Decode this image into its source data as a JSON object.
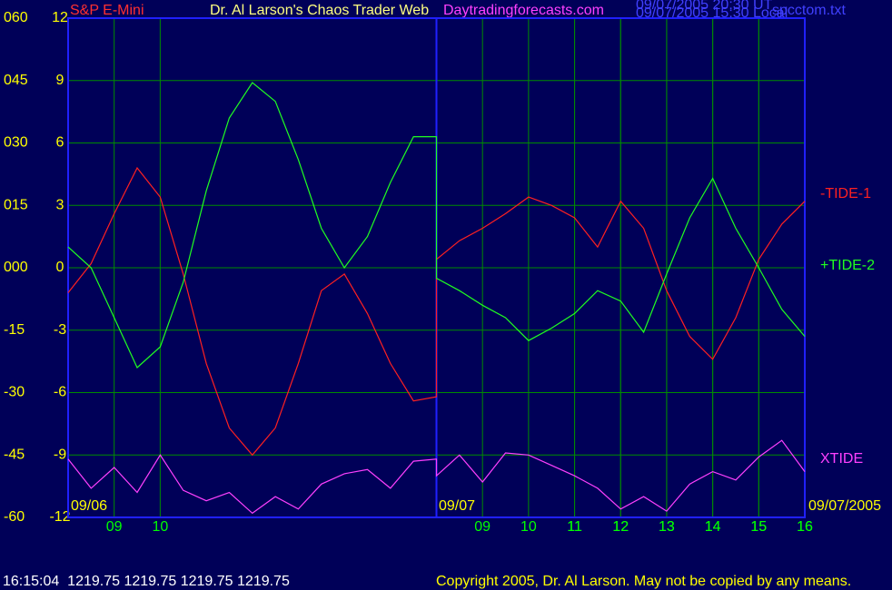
{
  "chart_data": {
    "type": "line",
    "title": "Dr. Al Larson's Chaos Trader Web",
    "subtitle": "S&P E-Mini",
    "website": "Daytradingforecasts.com",
    "timestamps": [
      "09/07/2005 20:30 UT",
      "09/07/2005 15:30 Local"
    ],
    "file": "spcctom.txt",
    "date_labels": [
      "09/06",
      "09/07",
      "09/07/2005"
    ],
    "status_line": "16:15:04  1219.75 1219.75 1219.75 1219.75",
    "copyright": "Copyright 2005, Dr. Al Larson. May not be copied by any means.",
    "x": [
      0,
      0.5,
      1,
      1.5,
      2,
      2.5,
      3,
      3.5,
      4,
      4.5,
      5,
      5.5,
      6,
      6.5,
      7,
      7.5,
      8,
      8,
      8.5,
      9,
      9.5,
      10,
      10.5,
      11,
      11.5,
      12,
      12.5,
      13,
      13.5,
      14,
      14.5,
      15,
      15.5,
      16
    ],
    "xlim": [
      0,
      16
    ],
    "xticks": [
      {
        "value": 1,
        "label": "09"
      },
      {
        "value": 2,
        "label": "10"
      },
      11,
      12,
      13,
      14,
      15,
      16,
      {
        "value": 9,
        "label": "09"
      },
      {
        "value": 10,
        "label": "10"
      },
      {
        "value": 11,
        "label": "11"
      },
      {
        "value": 12,
        "label": "12"
      },
      {
        "value": 13,
        "label": "13"
      },
      {
        "value": 14,
        "label": "14"
      },
      {
        "value": 15,
        "label": "15"
      },
      {
        "value": 16,
        "label": "16"
      }
    ],
    "ylim": [
      -12,
      12
    ],
    "yticks": [
      12,
      9,
      6,
      3,
      0,
      -3,
      -6,
      -9,
      -12
    ],
    "y2lim": [
      -60,
      60
    ],
    "y2ticks": [
      {
        "value": 60,
        "label": "060"
      },
      {
        "value": 45,
        "label": "045"
      },
      {
        "value": 30,
        "label": "030"
      },
      {
        "value": 15,
        "label": "015"
      },
      {
        "value": 0,
        "label": "000"
      },
      -15,
      -30,
      -45,
      -60
    ],
    "grid": true,
    "series": [
      {
        "name": "-TIDE-1",
        "color": "#ff2020",
        "values": [
          -1.2,
          0.2,
          2.6,
          4.8,
          3.4,
          -0.3,
          -4.6,
          -7.7,
          -9.0,
          -7.7,
          -4.6,
          -1.1,
          -0.3,
          -2.2,
          -4.6,
          -6.4,
          -6.2,
          0.4,
          1.3,
          1.9,
          2.6,
          3.4,
          3.0,
          2.4,
          1.0,
          3.2,
          1.9,
          -1.1,
          -3.3,
          -4.4,
          -2.4,
          0.4,
          2.1,
          3.2
        ]
      },
      {
        "name": "+TIDE-2",
        "color": "#20ff20",
        "values": [
          1.0,
          0,
          -2.4,
          -4.8,
          -3.8,
          -0.7,
          3.7,
          7.2,
          8.9,
          8.0,
          5.2,
          1.9,
          0,
          1.5,
          4.1,
          6.3,
          6.3,
          -0.5,
          -1.1,
          -1.8,
          -2.4,
          -3.5,
          -2.9,
          -2.2,
          -1.1,
          -1.6,
          -3.1,
          -0.3,
          2.4,
          4.3,
          1.9,
          0,
          -2.0,
          -3.3
        ]
      },
      {
        "name": "XTIDE",
        "color": "#ff40ff",
        "values": [
          -9.2,
          -10.6,
          -9.6,
          -10.8,
          -9.0,
          -10.7,
          -11.2,
          -10.8,
          -11.8,
          -11.0,
          -11.6,
          -10.4,
          -9.9,
          -9.7,
          -10.6,
          -9.3,
          -9.2,
          -10.0,
          -9.0,
          -10.3,
          -8.9,
          -9.0,
          -9.5,
          -10.0,
          -10.6,
          -11.6,
          -11.0,
          -11.7,
          -10.4,
          -9.8,
          -10.2,
          -9.1,
          -8.3,
          -9.8
        ]
      }
    ]
  }
}
